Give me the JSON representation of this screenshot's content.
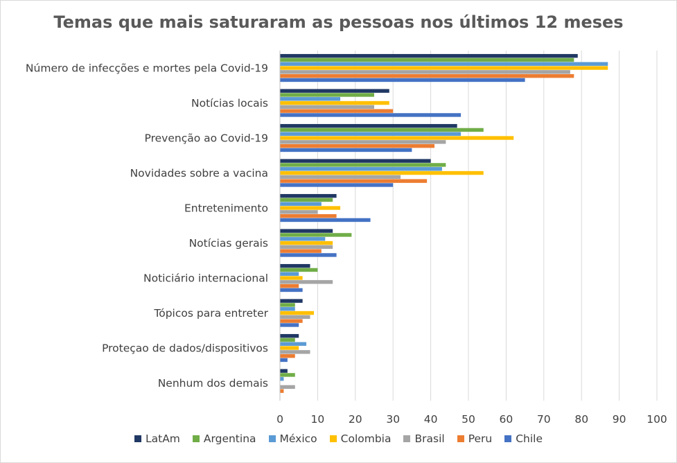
{
  "chart_data": {
    "type": "bar",
    "orientation": "horizontal",
    "title": "Temas que mais saturaram as pessoas nos últimos 12 meses",
    "xlabel": "",
    "ylabel": "",
    "xlim": [
      0,
      100
    ],
    "xticks": [
      0,
      10,
      20,
      30,
      40,
      50,
      60,
      70,
      80,
      90,
      100
    ],
    "grid": true,
    "legend_position": "bottom",
    "categories": [
      "Número de infecções e mortes pela Covid-19",
      "Notícias locais",
      "Prevenção ao Covid-19",
      "Novidades sobre a vacina",
      "Entretenimento",
      "Notícias gerais",
      "Noticiário internacional",
      "Tópicos para entreter",
      "Proteçao de dados/dispositivos",
      "Nenhum dos demais"
    ],
    "series": [
      {
        "name": "LatAm",
        "color": "#203864",
        "values": [
          79,
          29,
          47,
          40,
          15,
          14,
          8,
          6,
          5,
          2
        ]
      },
      {
        "name": "Argentina",
        "color": "#70ad47",
        "values": [
          78,
          25,
          54,
          44,
          14,
          19,
          10,
          4,
          4,
          4
        ]
      },
      {
        "name": "México",
        "color": "#5b9bd5",
        "values": [
          87,
          16,
          48,
          43,
          11,
          12,
          5,
          4,
          7,
          1
        ]
      },
      {
        "name": "Colombia",
        "color": "#ffc000",
        "values": [
          87,
          29,
          62,
          54,
          16,
          14,
          6,
          9,
          5,
          0
        ]
      },
      {
        "name": "Brasil",
        "color": "#a5a5a5",
        "values": [
          77,
          25,
          44,
          32,
          10,
          14,
          14,
          8,
          8,
          4
        ]
      },
      {
        "name": "Peru",
        "color": "#ed7d31",
        "values": [
          78,
          30,
          41,
          39,
          15,
          11,
          5,
          6,
          4,
          1
        ]
      },
      {
        "name": "Chile",
        "color": "#4472c4",
        "values": [
          65,
          48,
          35,
          30,
          24,
          15,
          6,
          5,
          2,
          0
        ]
      }
    ]
  }
}
